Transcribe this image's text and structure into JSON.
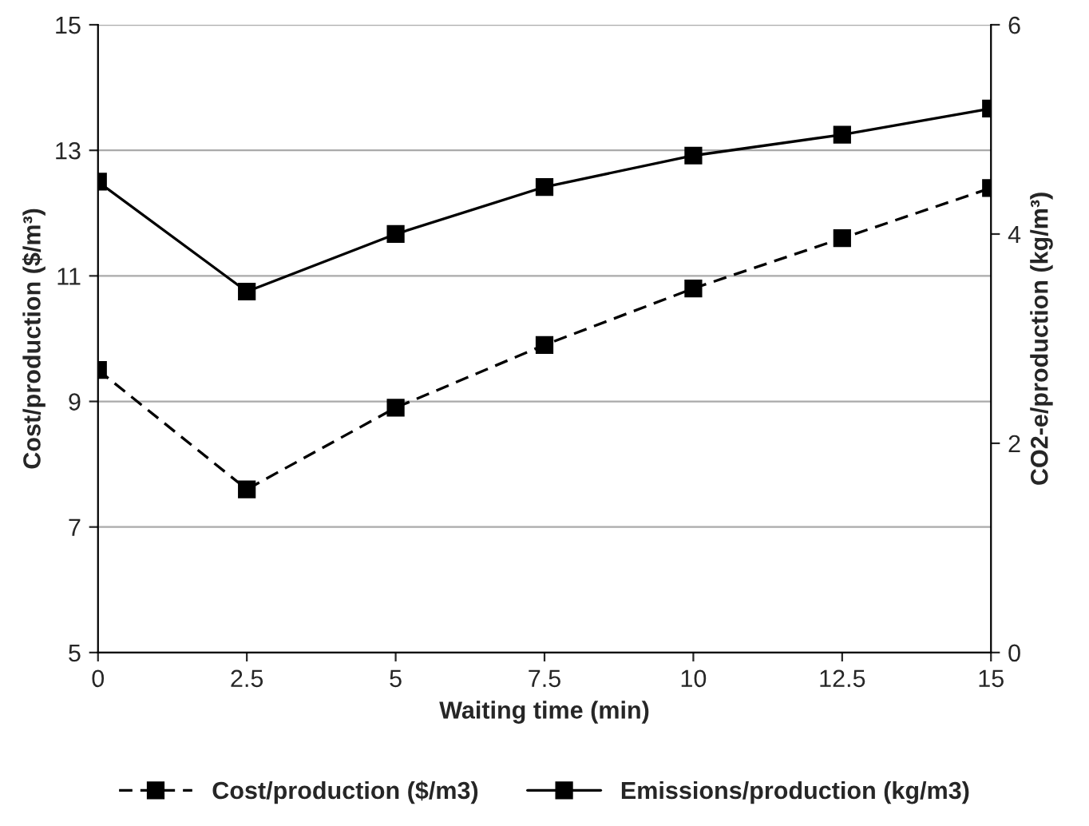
{
  "chart_data": {
    "type": "line",
    "xlabel": "Waiting time (min)",
    "ylabel": "Cost/production ($/m³)",
    "y2label": "CO2-e/production (kg/m³)",
    "x": [
      0,
      2.5,
      5,
      7.5,
      10,
      12.5,
      15
    ],
    "xlim": [
      0,
      15
    ],
    "xticks": [
      0,
      2.5,
      5,
      7.5,
      10,
      12.5,
      15
    ],
    "ylim": [
      5,
      15
    ],
    "yticks": [
      5,
      7,
      9,
      11,
      13,
      15
    ],
    "y2lim": [
      0,
      6
    ],
    "y2ticks": [
      0,
      2,
      4,
      6
    ],
    "grid": "y",
    "legend": "bottom",
    "marker": "square",
    "series": [
      {
        "name": "Cost/production ($/m3)",
        "color": "#000000",
        "line_style": "dashed",
        "values": [
          9.5,
          7.6,
          8.9,
          9.9,
          10.8,
          11.6,
          12.4
        ]
      },
      {
        "name": "Emissions/production (kg/m3)",
        "color": "#000000",
        "line_style": "solid",
        "axis": "y2",
        "values": [
          4.5,
          3.45,
          4.0,
          4.45,
          4.75,
          4.95,
          5.2
        ]
      }
    ]
  }
}
